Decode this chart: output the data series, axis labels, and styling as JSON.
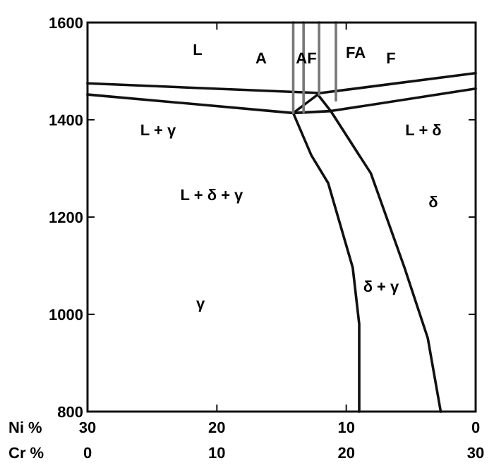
{
  "chart_data": {
    "type": "line",
    "xlabel": "Cr %",
    "x2label": "Ni %",
    "xlim": [
      0,
      30
    ],
    "xticks": [
      0,
      10,
      20,
      30
    ],
    "x2lim": [
      30,
      0
    ],
    "x2ticks": [
      30,
      20,
      10,
      0
    ],
    "ylim": [
      800,
      1600
    ],
    "yticks": [
      800,
      1000,
      1200,
      1400,
      1600
    ],
    "grid": false,
    "marker": "none",
    "line_style": "solid",
    "series": [
      {
        "color": "#111111",
        "x": [
          0,
          18.0,
          30
        ],
        "values": [
          1475,
          1455,
          1496
        ]
      },
      {
        "color": "#111111",
        "x": [
          0,
          15.9,
          18.8,
          30
        ],
        "values": [
          1452,
          1414,
          1418,
          1464
        ]
      },
      {
        "color": "#111111",
        "x": [
          17.8,
          15.9,
          17.3,
          18.6,
          20.5,
          21.0,
          21.0
        ],
        "values": [
          1452,
          1414,
          1327,
          1270,
          1096,
          980,
          800
        ]
      },
      {
        "color": "#111111",
        "x": [
          17.8,
          18.8,
          21.9,
          24.5,
          26.3,
          27.3
        ],
        "values": [
          1452,
          1418,
          1290,
          1096,
          951,
          800
        ]
      },
      {
        "color": "#777777",
        "x": [
          15.9,
          15.9
        ],
        "values": [
          1600,
          1414
        ]
      },
      {
        "color": "#777777",
        "x": [
          16.7,
          16.7
        ],
        "values": [
          1600,
          1416
        ]
      },
      {
        "color": "#777777",
        "x": [
          17.9,
          17.9
        ],
        "values": [
          1600,
          1452
        ]
      },
      {
        "color": "#777777",
        "x": [
          19.2,
          19.2
        ],
        "values": [
          1600,
          1440
        ]
      }
    ],
    "annotations": [
      "L",
      "A",
      "AF",
      "FA",
      "F",
      "L + γ",
      "L + δ",
      "L + δ + γ",
      "δ",
      "δ + γ",
      "γ"
    ]
  }
}
